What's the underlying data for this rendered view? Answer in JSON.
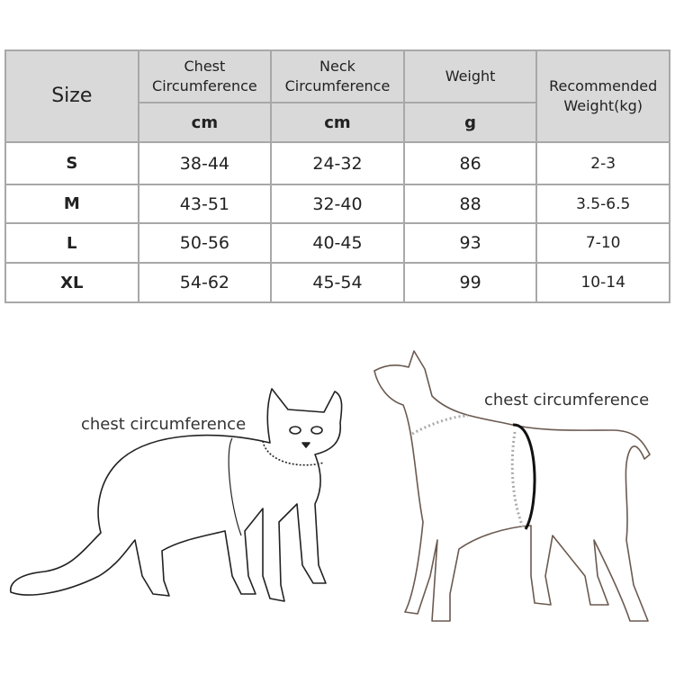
{
  "table": {
    "headers": {
      "size": "Size",
      "chest": "Chest Circumference",
      "neck": "Neck Circumference",
      "weight": "Weight",
      "recommended": "Recommended Weight(kg)"
    },
    "units": {
      "chest": "cm",
      "neck": "cm",
      "weight": "g"
    },
    "rows": [
      {
        "size": "S",
        "chest": "38-44",
        "neck": "24-32",
        "weight": "86",
        "recommended": "2-3"
      },
      {
        "size": "M",
        "chest": "43-51",
        "neck": "32-40",
        "weight": "88",
        "recommended": "3.5-6.5"
      },
      {
        "size": "L",
        "chest": "50-56",
        "neck": "40-45",
        "weight": "93",
        "recommended": "7-10"
      },
      {
        "size": "XL",
        "chest": "54-62",
        "neck": "45-54",
        "weight": "99",
        "recommended": "10-14"
      }
    ]
  },
  "illustrations": {
    "cat_label": "chest circumference",
    "dog_label": "chest circumference"
  },
  "colors": {
    "header_bg": "#d9d9d9",
    "border": "#a8a8a8",
    "outline": "#6b5a50"
  }
}
